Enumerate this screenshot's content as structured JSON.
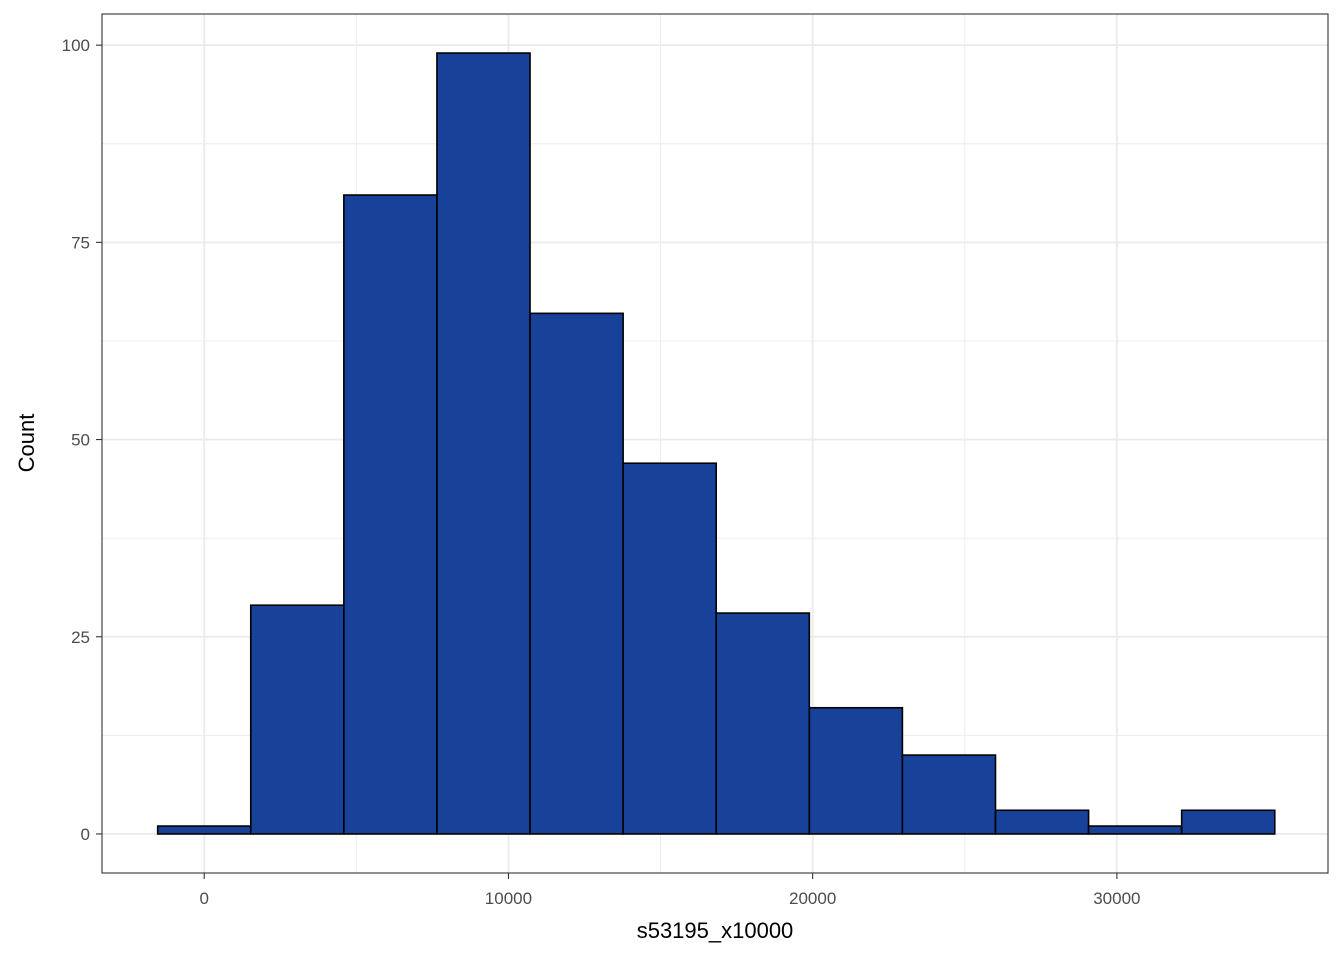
{
  "chart_data": {
    "type": "bar",
    "subtype": "histogram",
    "xlabel": "s53195_x10000",
    "ylabel": "Count",
    "bin_width": 3060,
    "bins": [
      {
        "x_start": -1530,
        "x_end": 1530,
        "count": 1
      },
      {
        "x_start": 1530,
        "x_end": 4590,
        "count": 29
      },
      {
        "x_start": 4590,
        "x_end": 7650,
        "count": 81
      },
      {
        "x_start": 7650,
        "x_end": 10710,
        "count": 99
      },
      {
        "x_start": 10710,
        "x_end": 13770,
        "count": 66
      },
      {
        "x_start": 13770,
        "x_end": 16830,
        "count": 47
      },
      {
        "x_start": 16830,
        "x_end": 19890,
        "count": 28
      },
      {
        "x_start": 19890,
        "x_end": 22950,
        "count": 16
      },
      {
        "x_start": 22950,
        "x_end": 26010,
        "count": 10
      },
      {
        "x_start": 26010,
        "x_end": 29070,
        "count": 3
      },
      {
        "x_start": 29070,
        "x_end": 32130,
        "count": 1
      },
      {
        "x_start": 32130,
        "x_end": 35190,
        "count": 3
      }
    ],
    "xlim": [
      -3360,
      36940
    ],
    "ylim": [
      -4.95,
      103.95
    ],
    "x_ticks": [
      0,
      10000,
      20000,
      30000
    ],
    "x_minor_ticks": [
      5000,
      15000,
      25000
    ],
    "y_ticks": [
      0,
      25,
      50,
      75,
      100
    ],
    "y_minor_ticks": [
      12.5,
      37.5,
      62.5,
      87.5
    ],
    "grid": true,
    "legend": "none",
    "colors": {
      "bar_fill": "#18429A",
      "bar_stroke": "#000000",
      "grid": "#EBEBEB",
      "panel_border": "#333333",
      "tick_text": "#4D4D4D"
    }
  }
}
